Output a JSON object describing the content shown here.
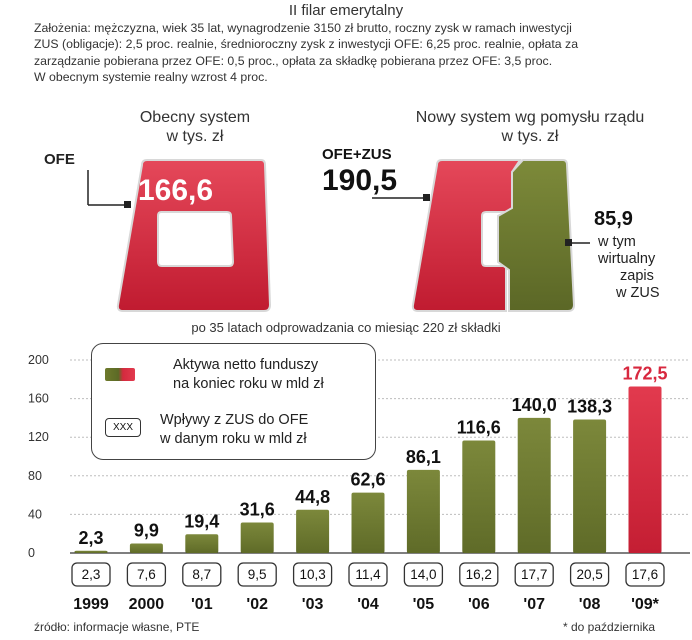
{
  "header": {
    "title": "II filar emerytalny",
    "assumptions": [
      "Założenia: mężczyzna, wiek 35 lat, wynagrodzenie 3150 zł brutto, roczny zysk w ramach inwestycji",
      "ZUS (obligacje): 2,5 proc. realnie, średnioroczny zysk z inwestycji OFE: 6,25 proc. realnie, opłata za",
      "zarządzanie pobierana przez OFE: 0,5 proc., opłata za składkę pobierana przez OFE: 3,5 proc.",
      "W obecnym systemie realny wzrost 4 proc."
    ]
  },
  "comparison": {
    "current": {
      "title_line1": "Obecny system",
      "title_line2": "w tys. zł",
      "ofe_label": "OFE",
      "value": "166,6"
    },
    "proposed": {
      "title_line1": "Nowy system wg pomysłu rządu",
      "title_line2": "w tys. zł",
      "total_label": "OFE+ZUS",
      "total_value": "190,5",
      "zus_value": "85,9",
      "zus_desc": [
        "w tym",
        "wirtualny",
        "zapis",
        "w ZUS"
      ]
    },
    "note": "po 35 latach odprowadzania co miesiąc 220 zł składki"
  },
  "legend": {
    "assets": [
      "Aktywa netto funduszy",
      "na koniec roku w mld zł"
    ],
    "inflow_box": "XXX",
    "inflows": [
      "Wpływy z ZUS do OFE",
      "w danym roku w mld zł"
    ]
  },
  "chart_data": {
    "type": "bar",
    "categories": [
      "1999",
      "2000",
      "'01",
      "'02",
      "'03",
      "'04",
      "'05",
      "'06",
      "'07",
      "'08",
      "'09*"
    ],
    "series": [
      {
        "name": "Aktywa netto funduszy na koniec roku w mld zł",
        "values": [
          2.3,
          9.9,
          19.4,
          31.6,
          44.8,
          62.6,
          86.1,
          116.6,
          140.0,
          138.3,
          172.5
        ],
        "labels": [
          "2,3",
          "9,9",
          "19,4",
          "31,6",
          "44,8",
          "62,6",
          "86,1",
          "116,6",
          "140,0",
          "138,3",
          "172,5"
        ]
      },
      {
        "name": "Wpływy z ZUS do OFE w danym roku w mld zł",
        "values": [
          2.3,
          7.6,
          8.7,
          9.5,
          10.3,
          11.4,
          14.0,
          16.2,
          17.7,
          20.5,
          17.6
        ],
        "labels": [
          "2,3",
          "7,6",
          "8,7",
          "9,5",
          "10,3",
          "11,4",
          "14,0",
          "16,2",
          "17,7",
          "20,5",
          "17,6"
        ]
      }
    ],
    "yticks": [
      "0",
      "40",
      "80",
      "120",
      "160",
      "200"
    ],
    "ylim": [
      0,
      200
    ],
    "highlight_last": true,
    "colors": {
      "bar": "#6b7630",
      "bar_highlight": "#d8283f",
      "label_highlight": "#d8283f"
    }
  },
  "footer": {
    "source": "źródło: informacje własne, PTE",
    "footnote": "* do października"
  }
}
